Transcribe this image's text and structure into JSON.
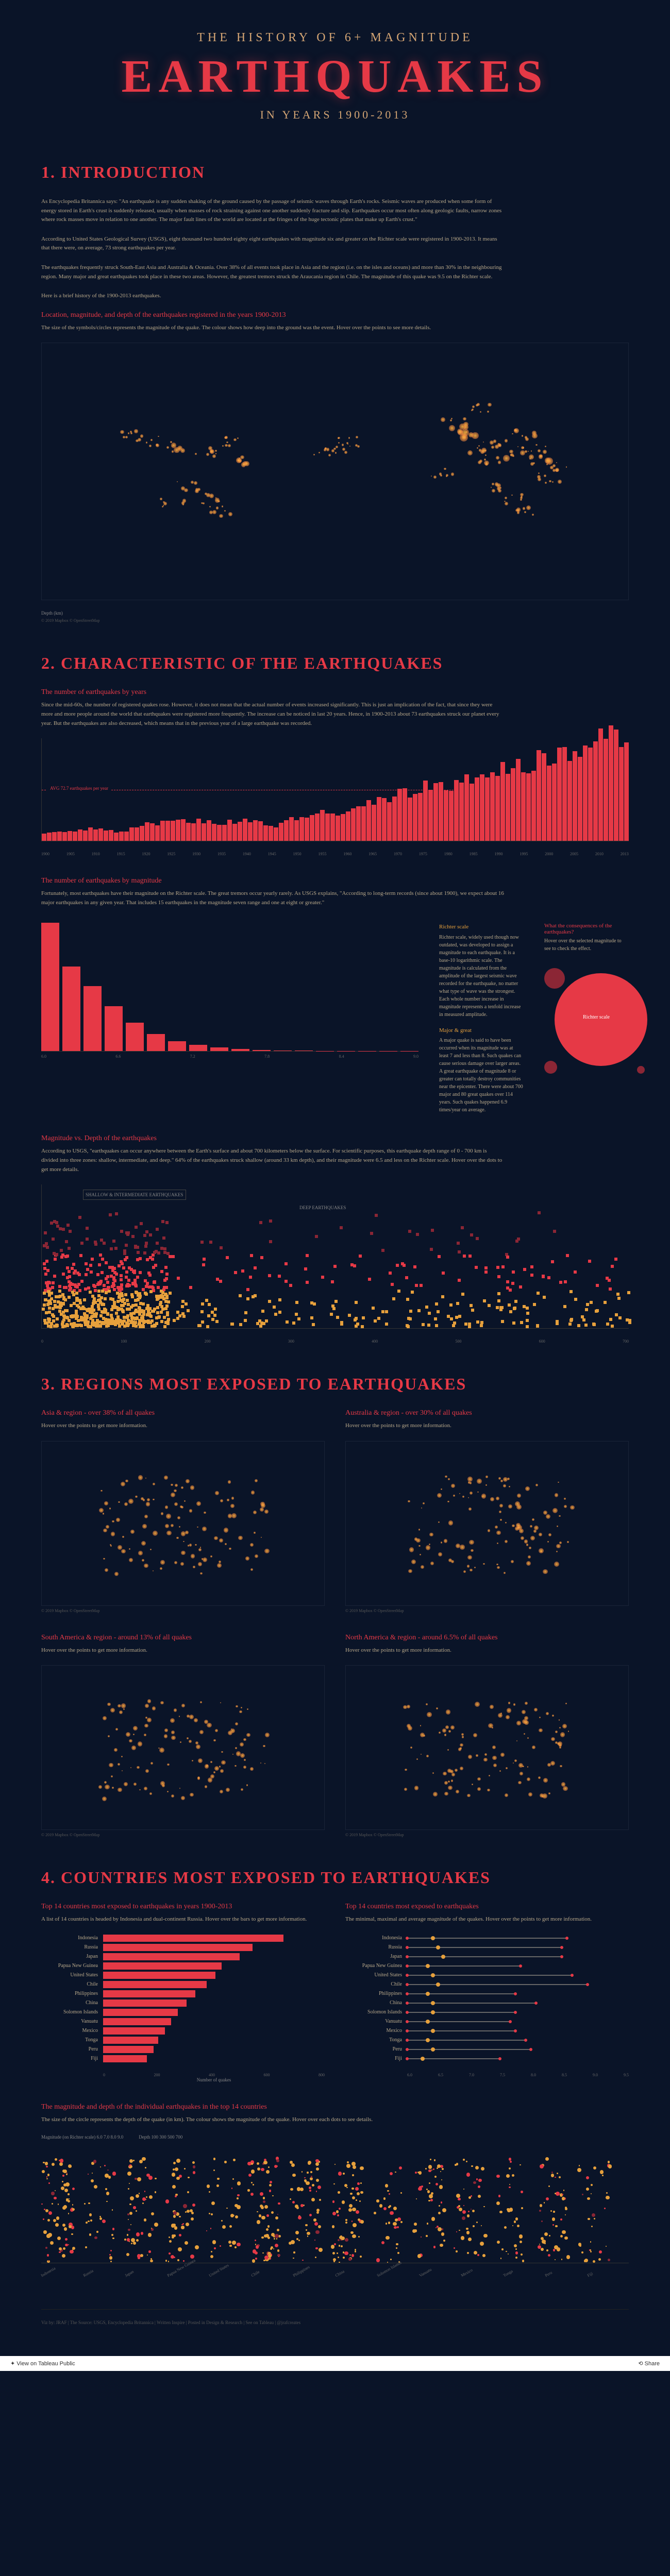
{
  "header": {
    "line1": "THE HISTORY OF 6+ MAGNITUDE",
    "line2": "EARTHQUAKES",
    "line3": "IN YEARS 1900-2013"
  },
  "section1": {
    "title": "1. INTRODUCTION",
    "para1": "As Encyclopedia Britannica says: \"An earthquake is any sudden shaking of the ground caused by the passage of seismic waves through Earth's rocks. Seismic waves are produced when some form of energy stored in Earth's crust is suddenly released, usually when masses of rock straining against one another suddenly fracture and slip. Earthquakes occur most often along geologic faults, narrow zones where rock masses move in relation to one another. The major fault lines of the world are located at the fringes of the huge tectonic plates that make up Earth's crust.\"",
    "para2": "According to United States Geological Survey (USGS), eight thousand two hundred eighty eight earthquakes with magnitude six and greater on the Richter scale were registered in 1900-2013. It means that there were, on average, 73 strong earthquakes per year.",
    "para3": "The earthquakes frequently struck South-East Asia and Australia & Oceania. Over 38% of all events took place in Asia and the region (i.e. on the isles and oceans) and more than 30% in the neighbouring region. Many major and great earthquakes took place in these two areas. However, the greatest tremors struck the Araucania region in Chile. The magnitude of this quake was 9.5 on the Richter scale.",
    "para4": "Here is a brief history of the 1900-2013 earthquakes.",
    "map_subtitle": "Location, magnitude, and depth of the earthquakes registered in the years 1900-2013",
    "map_desc": "The size of the symbols/circles represents the magnitude of the quake. The colour shows how deep into the ground was the event. Hover over the points to see more details.",
    "legend_label": "Depth (km)",
    "credit": "© 2019 Mapbox © OpenStreetMap"
  },
  "section2": {
    "title": "2. CHARACTERISTIC OF THE EARTHQUAKES",
    "sub1_title": "The number of earthquakes by years",
    "sub1_desc": "Since the mid-60s, the number of registered quakes rose. However, it does not mean that the actual number of events increased significantly. This is just an implication of the fact, that since they were more and more people around the world that earthquakes were registered more frequently. The increase can be noticed in last 20 years. Hence, in 1900-2013 about 73 earthquakes struck our planet every year. But the earthquakes are also decreased, which means that in the previous year of a large earthquake was recorded.",
    "avg_label": "AVG 72.7 earthquakes per year",
    "year_axis": [
      "1900",
      "1905",
      "1910",
      "1915",
      "1920",
      "1925",
      "1930",
      "1935",
      "1940",
      "1945",
      "1950",
      "1955",
      "1960",
      "1965",
      "1970",
      "1975",
      "1980",
      "1985",
      "1990",
      "1995",
      "2000",
      "2005",
      "2010",
      "2013"
    ],
    "year_values": [
      12,
      18,
      22,
      15,
      28,
      32,
      35,
      30,
      38,
      25,
      42,
      48,
      52,
      68,
      85,
      92,
      98,
      105,
      120,
      135,
      145,
      160,
      178,
      165
    ],
    "sub2_title": "The number of earthquakes by magnitude",
    "sub2_desc": "Fortunately, most earthquakes have their magnitude on the Richter scale. The great tremors occur yearly rarely. As USGS explains, \"According to long-term records (since about 1900), we expect about 16 major earthquakes in any given year. That includes 15 earthquakes in the magnitude seven range and one at eight or greater.\"",
    "hist_values": [
      2800,
      1850,
      1420,
      980,
      620,
      380,
      220,
      140,
      85,
      52,
      30,
      18,
      10,
      6,
      3,
      2,
      1,
      1
    ],
    "hist_labels": [
      "6.0",
      "6.2",
      "6.4",
      "6.6",
      "6.8",
      "7.0",
      "7.2",
      "7.4",
      "7.6",
      "7.8",
      "8.0",
      "8.2",
      "8.4",
      "8.6",
      "8.8",
      "9.0",
      "9.2",
      "9.4"
    ],
    "richter_title": "Richter scale",
    "richter_desc": "Richter scale, widely used though now outdated, was developed to assign a magnitude to each earthquake. It is a base-10 logarithmic scale. The magnitude is calculated from the amplitude of the largest seismic wave recorded for the earthquake, no matter what type of wave was the strongest. Each whole number increase in magnitude represents a tenfold increase in measured amplitude.",
    "major_title": "Major & great",
    "major_desc": "A major quake is said to have been occurred when its magnitude was at least 7 and less than 8. Such quakes can cause serious damage over larger areas. A great earthquake of magnitude 8 or greater can totally destroy communities near the epicenter. There were about 700 major and 80 great quakes over 114 years. Such quakes happened 6.9 times/year on average.",
    "conseq_title": "What the consequences of the earthquakes?",
    "conseq_desc": "Hover over the selected magnitude to see to check the effect.",
    "bubble_label": "Richter scale",
    "sub3_title": "Magnitude vs. Depth of the earthquakes",
    "sub3_desc": "According to USGS, \"earthquakes can occur anywhere between the Earth's surface and about 700 kilometers below the surface. For scientific purposes, this earthquake depth range of 0 - 700 km is divided into three zones: shallow, intermediate, and deep.\" 64% of the earthquakes struck shallow (around 33 km depth), and their magnitude were 6.5 and less on the Richter scale. Hover over the dots to get more details.",
    "scatter_ylabels": [
      "0.4",
      "3.6",
      "6.8",
      "10.0"
    ],
    "scatter_xlabels": [
      "0",
      "100",
      "200",
      "300",
      "400",
      "500",
      "600",
      "700"
    ],
    "scatter_annotation1": "SHALLOW & INTERMEDIATE EARTHQUAKES",
    "scatter_annotation2": "DEEP EARTHQUAKES",
    "scatter_colors": [
      "#e6a03c",
      "#e63946",
      "#8b2635"
    ]
  },
  "section3": {
    "title": "3. REGIONS MOST EXPOSED TO EARTHQUAKES",
    "regions": [
      {
        "name": "Asia & region",
        "stat": "over 38% of all quakes",
        "desc": "Hover over the points to get more information."
      },
      {
        "name": "Australia & region",
        "stat": "over 30% of all quakes",
        "desc": "Hover over the points to get more information."
      },
      {
        "name": "South America & region",
        "stat": "around 13% of all quakes",
        "desc": "Hover over the points to get more information."
      },
      {
        "name": "North America & region",
        "stat": "around 6.5% of all quakes",
        "desc": "Hover over the points to get more information."
      }
    ],
    "credit": "© 2019 Mapbox © OpenStreetMap"
  },
  "section4": {
    "title": "4. COUNTRIES MOST EXPOSED TO EARTHQUAKES",
    "left_title": "Top 14 countries most exposed to earthquakes in years 1900-2013",
    "left_desc": "A list of 14 countries is headed by Indonesia and dual-continent Russia. Hover over the bars to get more information.",
    "countries": [
      {
        "name": "Indonesia",
        "value": 820
      },
      {
        "name": "Russia",
        "value": 680
      },
      {
        "name": "Japan",
        "value": 620
      },
      {
        "name": "Papua New Guinea",
        "value": 540
      },
      {
        "name": "United States",
        "value": 510
      },
      {
        "name": "Chile",
        "value": 470
      },
      {
        "name": "Philippines",
        "value": 420
      },
      {
        "name": "China",
        "value": 380
      },
      {
        "name": "Solomon Islands",
        "value": 340
      },
      {
        "name": "Vanuatu",
        "value": 310
      },
      {
        "name": "Mexico",
        "value": 280
      },
      {
        "name": "Tonga",
        "value": 250
      },
      {
        "name": "Peru",
        "value": 230
      },
      {
        "name": "Fiji",
        "value": 200
      }
    ],
    "left_axis": [
      "0",
      "200",
      "400",
      "600",
      "800"
    ],
    "left_axis_label": "Number of quakes",
    "right_title": "Top 14 countries most exposed to earthquakes",
    "right_desc": "The minimal, maximal and average magnitude of the quakes. Hover over the points to get more information.",
    "mag_ranges": [
      {
        "name": "Indonesia",
        "min": 6.0,
        "avg": 6.5,
        "max": 9.1
      },
      {
        "name": "Russia",
        "min": 6.0,
        "avg": 6.6,
        "max": 9.0
      },
      {
        "name": "Japan",
        "min": 6.0,
        "avg": 6.7,
        "max": 9.0
      },
      {
        "name": "Papua New Guinea",
        "min": 6.0,
        "avg": 6.4,
        "max": 8.2
      },
      {
        "name": "United States",
        "min": 6.0,
        "avg": 6.5,
        "max": 9.2
      },
      {
        "name": "Chile",
        "min": 6.0,
        "avg": 6.6,
        "max": 9.5
      },
      {
        "name": "Philippines",
        "min": 6.0,
        "avg": 6.4,
        "max": 8.1
      },
      {
        "name": "China",
        "min": 6.0,
        "avg": 6.5,
        "max": 8.5
      },
      {
        "name": "Solomon Islands",
        "min": 6.0,
        "avg": 6.5,
        "max": 8.1
      },
      {
        "name": "Vanuatu",
        "min": 6.0,
        "avg": 6.4,
        "max": 8.0
      },
      {
        "name": "Mexico",
        "min": 6.0,
        "avg": 6.5,
        "max": 8.1
      },
      {
        "name": "Tonga",
        "min": 6.0,
        "avg": 6.4,
        "max": 8.3
      },
      {
        "name": "Peru",
        "min": 6.0,
        "avg": 6.5,
        "max": 8.4
      },
      {
        "name": "Fiji",
        "min": 6.0,
        "avg": 6.3,
        "max": 7.8
      }
    ],
    "right_axis": [
      "6.0",
      "6.5",
      "7.0",
      "7.5",
      "8.0",
      "8.5",
      "9.0",
      "9.5"
    ],
    "sub2_title": "The magnitude and depth of the individual earthquakes in the top 14 countries",
    "sub2_desc": "The size of the circle represents the depth of the quake (in km). The colour shows the magnitude of the quake. Hover over each dots to see details.",
    "strip_labels": [
      "Indonesia",
      "Russia",
      "Japan",
      "Papua New Guinea",
      "United States",
      "Chile",
      "Philippines",
      "China",
      "Solomon Islands",
      "Vanuatu",
      "Mexico",
      "Tonga",
      "Peru",
      "Fiji"
    ],
    "mag_legend_title": "Magnitude (on Richter scale)",
    "mag_legend": [
      "6.0",
      "7.0",
      "8.0",
      "9.0"
    ],
    "depth_legend_title": "Depth",
    "depth_legend": [
      "100",
      "300",
      "500",
      "700"
    ]
  },
  "footer": {
    "left": "Viz by: JRAF | The Source: USGS, Encyclopedia Britannica | Written Inspire | Posted in Design & Research | See on Tableau | @jrafcreates",
    "tableau": "View on Tableau Public",
    "share": "Share"
  }
}
